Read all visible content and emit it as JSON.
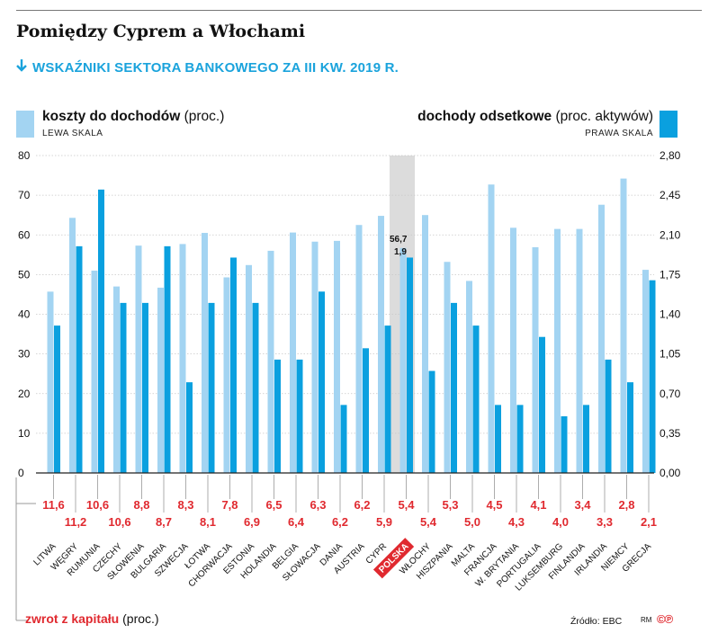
{
  "title": "Pomiędzy Cyprem a Włochami",
  "subtitle": "WSKAŹNIKI SEKTORA BANKOWEGO ZA III KW. 2019 R.",
  "legend_left": {
    "name": "koszty do dochodów",
    "unit": "(proc.)",
    "scale": "LEWA SKALA",
    "color": "#a3d4f2"
  },
  "legend_right": {
    "name": "dochody odsetkowe",
    "unit": "(proc. aktywów)",
    "scale": "PRAWA SKALA",
    "color": "#0aa0df"
  },
  "footer": {
    "name": "zwrot z kapitału",
    "unit": "(proc.)"
  },
  "source": "Źródło: EBC",
  "author": "RM",
  "logo": "©℗",
  "chart_data": {
    "type": "bar",
    "categories": [
      "LITWA",
      "WĘGRY",
      "RUMUNIA",
      "CZECHY",
      "SŁOWENIA",
      "BULGARIA",
      "SZWECJA",
      "ŁOTWA",
      "CHORWACJA",
      "ESTONIA",
      "HOLANDIA",
      "BELGIA",
      "SŁOWACJA",
      "DANIA",
      "AUSTRIA",
      "CYPR",
      "POLSKA",
      "WŁOCHY",
      "HISZPANIA",
      "MALTA",
      "FRANCJA",
      "W. BRYTANIA",
      "PORTUGALIA",
      "LUKSEMBURG",
      "FINLANDIA",
      "IRLANDIA",
      "NIEMCY",
      "GRECJA"
    ],
    "highlight_category": "POLSKA",
    "series": [
      {
        "name": "koszty do dochodów",
        "axis": "left",
        "values": [
          45.7,
          64.3,
          51.0,
          47.0,
          57.3,
          46.7,
          57.7,
          60.5,
          49.3,
          52.4,
          56.0,
          60.6,
          58.3,
          58.5,
          62.5,
          64.8,
          56.7,
          65.0,
          53.2,
          48.4,
          72.7,
          61.8,
          56.9,
          61.5,
          61.5,
          67.6,
          74.2,
          51.2
        ]
      },
      {
        "name": "dochody odsetkowe",
        "axis": "right",
        "values": [
          1.3,
          2.0,
          2.5,
          1.5,
          1.5,
          2.0,
          0.8,
          1.5,
          1.9,
          1.5,
          1.0,
          1.0,
          1.6,
          0.6,
          1.1,
          1.3,
          1.9,
          0.9,
          1.5,
          1.3,
          0.6,
          0.6,
          1.2,
          0.5,
          0.6,
          1.0,
          0.8,
          1.7
        ]
      },
      {
        "name": "zwrot z kapitału",
        "values": [
          "11,6",
          "11,2",
          "10,6",
          "10,6",
          "8,8",
          "8,7",
          "8,3",
          "8,1",
          "7,8",
          "6,9",
          "6,5",
          "6,4",
          "6,3",
          "6,2",
          "6,2",
          "5,9",
          "5,4",
          "5,4",
          "5,3",
          "5,0",
          "4,5",
          "4,3",
          "4,1",
          "4,0",
          "3,4",
          "3,3",
          "2,8",
          "2,1"
        ]
      }
    ],
    "data_labels": {
      "POLSKA_left": "56,7",
      "POLSKA_right": "1,9"
    },
    "y_left": {
      "ticks": [
        "0",
        "10",
        "20",
        "30",
        "40",
        "50",
        "60",
        "70",
        "80"
      ],
      "ylim": [
        0,
        80
      ]
    },
    "y_right": {
      "ticks": [
        "0,00",
        "0,35",
        "0,70",
        "1,05",
        "1,40",
        "1,75",
        "2,10",
        "2,45",
        "2,80"
      ],
      "ylim": [
        0,
        2.8
      ]
    }
  }
}
